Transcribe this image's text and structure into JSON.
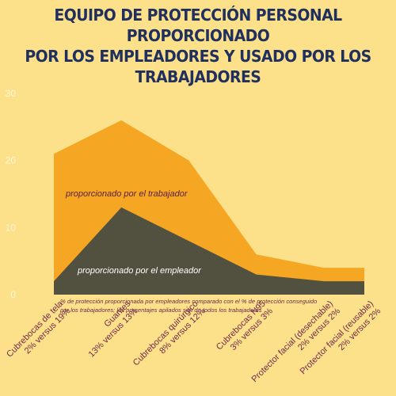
{
  "title": "EQUIPO DE PROTECCIÓN PERSONAL PROPORCIONADO\nPOR LOS EMPLEADORES Y USADO POR LOS\nTRABAJADORES",
  "note": "% de protección proporcionada por empleadores comparado con el % de protección conseguido por los trabajadores; los porcentajes apilados son de todos los trabajadores",
  "colors": {
    "background": "#fde08a",
    "worker_area": "#f5a623",
    "employer_area": "#52503f",
    "title": "#1f2f5e",
    "category_text": "#6b2b4b",
    "tick_text": "#fff5d6"
  },
  "chart_data": {
    "type": "area",
    "stacked": true,
    "ylim": [
      0,
      30
    ],
    "yticks": [
      0,
      10,
      20,
      30
    ],
    "grid": false,
    "categories": [
      [
        "Cubrebocas de tela",
        "2% versus 19%"
      ],
      [
        "Guantes",
        "13% versus 13%"
      ],
      [
        "Cubrebocas quirúrgico",
        "8% versus 12%"
      ],
      [
        "Cubrebocas N95",
        "3% versus 3%"
      ],
      [
        "Protector facial (desechable)",
        "2% versus 2%"
      ],
      [
        "Protector facial (reusable)",
        "2% versus 2%"
      ]
    ],
    "x_positions": [
      0,
      1,
      2,
      3,
      4,
      4.6
    ],
    "series": [
      {
        "name": "proporcionado por el empleador",
        "values": [
          2,
          13,
          8,
          3,
          2,
          2
        ]
      },
      {
        "name": "proporcionado por el trabajador",
        "values": [
          19,
          13,
          12,
          3,
          2,
          2
        ]
      }
    ]
  }
}
